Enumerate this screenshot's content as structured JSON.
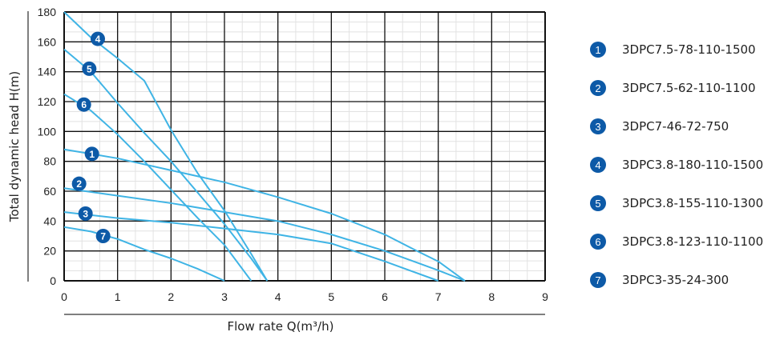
{
  "chart_data": {
    "type": "line",
    "xlabel": "Flow rate  Q(m³/h)",
    "ylabel": "Total dynamic head  H(m)",
    "xlim": [
      0,
      9
    ],
    "ylim": [
      0,
      180
    ],
    "xticks": [
      "0",
      "1",
      "2",
      "3",
      "4",
      "5",
      "6",
      "7",
      "8",
      "9"
    ],
    "yticks": [
      "0",
      "20",
      "40",
      "60",
      "80",
      "100",
      "120",
      "140",
      "160",
      "180"
    ],
    "grid": true,
    "legend_position": "right",
    "line_color": "#3fb4e5",
    "marker_color": "#0d5aa7",
    "series": [
      {
        "id": "1",
        "name": "3DPC7.5-78-110-1500",
        "x": [
          0,
          1,
          2,
          3,
          4,
          5,
          6,
          6.6,
          7,
          7.5
        ],
        "y": [
          88,
          82,
          74,
          66,
          56,
          45,
          31,
          20,
          13,
          0
        ],
        "label_at": [
          0.52,
          85
        ]
      },
      {
        "id": "2",
        "name": "3DPC7.5-62-110-1100",
        "x": [
          0,
          1,
          2,
          3,
          4,
          5,
          6,
          7,
          7.5
        ],
        "y": [
          62,
          57,
          52,
          46,
          40,
          31,
          20,
          7,
          0
        ],
        "label_at": [
          0.28,
          65
        ]
      },
      {
        "id": "3",
        "name": "3DPC7-46-72-750",
        "x": [
          0,
          1,
          2,
          3,
          4,
          5,
          6,
          7
        ],
        "y": [
          46,
          42,
          39,
          35,
          31,
          25,
          13,
          0
        ],
        "label_at": [
          0.4,
          45
        ]
      },
      {
        "id": "4",
        "name": "3DPC3.8-180-110-1500",
        "x": [
          0,
          0.5,
          1,
          1.5,
          2,
          2.5,
          3,
          3.5,
          3.8
        ],
        "y": [
          180,
          163,
          149,
          134,
          101,
          72,
          47,
          18,
          0
        ],
        "label_at": [
          0.63,
          162
        ]
      },
      {
        "id": "5",
        "name": "3DPC3.8-155-110-1300",
        "x": [
          0,
          0.5,
          1,
          1.5,
          2,
          2.5,
          3,
          3.5,
          3.8
        ],
        "y": [
          155,
          140,
          119,
          99,
          80,
          59,
          38,
          15,
          0
        ],
        "label_at": [
          0.47,
          142
        ]
      },
      {
        "id": "6",
        "name": "3DPC3.8-123-110-1100",
        "x": [
          0,
          0.5,
          1,
          1.5,
          2,
          2.5,
          3,
          3.5
        ],
        "y": [
          125,
          114,
          98,
          80,
          61,
          42,
          24,
          0
        ],
        "label_at": [
          0.37,
          118
        ]
      },
      {
        "id": "7",
        "name": "3DPC3-35-24-300",
        "x": [
          0,
          0.5,
          1,
          1.5,
          2,
          2.5,
          3
        ],
        "y": [
          36,
          33,
          28,
          21,
          15,
          8,
          0
        ],
        "label_at": [
          0.73,
          30
        ]
      }
    ]
  }
}
